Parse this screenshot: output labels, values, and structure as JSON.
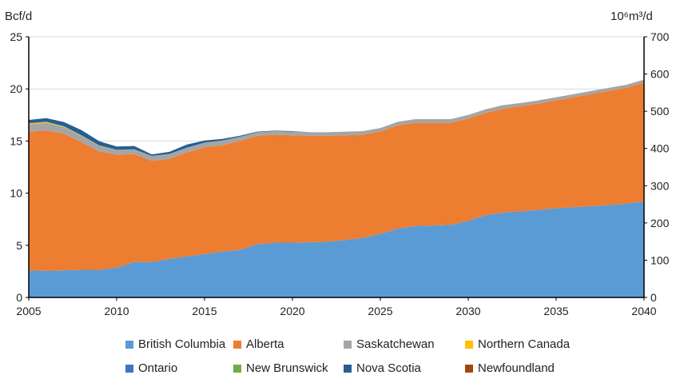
{
  "chart_data": {
    "type": "area",
    "stacked": true,
    "ylabel_left": "Bcf/d",
    "ylabel_right": "10⁶m³/d",
    "x": [
      2005,
      2006,
      2007,
      2008,
      2009,
      2010,
      2011,
      2012,
      2013,
      2014,
      2015,
      2016,
      2017,
      2018,
      2019,
      2020,
      2021,
      2022,
      2023,
      2024,
      2025,
      2026,
      2027,
      2028,
      2029,
      2030,
      2031,
      2032,
      2033,
      2034,
      2035,
      2036,
      2037,
      2038,
      2039,
      2040
    ],
    "xlim": [
      2005,
      2040
    ],
    "xticks": [
      2005,
      2010,
      2015,
      2020,
      2025,
      2030,
      2035,
      2040
    ],
    "ylim": [
      0,
      25
    ],
    "yticks": [
      0,
      5,
      10,
      15,
      20,
      25
    ],
    "ylim_right": [
      0,
      700
    ],
    "yticks_right": [
      0,
      100,
      200,
      300,
      400,
      500,
      600,
      700
    ],
    "grid": true,
    "legend_position": "bottom",
    "series": [
      {
        "name": "British Columbia",
        "color": "#5b9bd5",
        "values": [
          2.6,
          2.55,
          2.6,
          2.65,
          2.65,
          2.85,
          3.4,
          3.4,
          3.7,
          3.95,
          4.15,
          4.4,
          4.55,
          5.1,
          5.25,
          5.25,
          5.3,
          5.35,
          5.5,
          5.7,
          6.1,
          6.6,
          6.85,
          6.9,
          6.95,
          7.35,
          7.9,
          8.15,
          8.25,
          8.4,
          8.55,
          8.65,
          8.75,
          8.85,
          9.0,
          9.2
        ]
      },
      {
        "name": "Alberta",
        "color": "#ed7d31",
        "values": [
          13.3,
          13.45,
          13.1,
          12.25,
          11.35,
          10.85,
          10.35,
          9.7,
          9.6,
          9.95,
          10.25,
          10.2,
          10.45,
          10.4,
          10.35,
          10.3,
          10.2,
          10.15,
          10.05,
          9.9,
          9.8,
          9.9,
          9.9,
          9.85,
          9.8,
          9.8,
          9.8,
          9.95,
          10.1,
          10.2,
          10.35,
          10.55,
          10.75,
          10.95,
          11.1,
          11.4
        ]
      },
      {
        "name": "Saskatchewan",
        "color": "#a5a5a5",
        "values": [
          0.7,
          0.75,
          0.65,
          0.6,
          0.55,
          0.45,
          0.45,
          0.45,
          0.45,
          0.45,
          0.45,
          0.45,
          0.4,
          0.35,
          0.35,
          0.35,
          0.35,
          0.35,
          0.35,
          0.35,
          0.35,
          0.35,
          0.35,
          0.35,
          0.35,
          0.35,
          0.35,
          0.35,
          0.3,
          0.3,
          0.3,
          0.3,
          0.3,
          0.3,
          0.3,
          0.3
        ]
      },
      {
        "name": "Northern Canada",
        "color": "#ffc000",
        "values": [
          0.1,
          0.08,
          0.05,
          0.03,
          0.02,
          0,
          0,
          0,
          0,
          0,
          0,
          0,
          0,
          0,
          0,
          0,
          0,
          0,
          0,
          0,
          0,
          0,
          0,
          0,
          0,
          0,
          0,
          0,
          0,
          0,
          0,
          0,
          0,
          0,
          0,
          0
        ]
      },
      {
        "name": "Ontario",
        "color": "#4472c4",
        "values": [
          0.01,
          0.01,
          0.01,
          0.01,
          0.01,
          0.01,
          0.01,
          0.01,
          0.01,
          0.01,
          0,
          0,
          0,
          0,
          0,
          0,
          0,
          0,
          0,
          0,
          0,
          0,
          0,
          0,
          0,
          0,
          0,
          0,
          0,
          0,
          0,
          0,
          0,
          0,
          0,
          0
        ]
      },
      {
        "name": "New Brunswick",
        "color": "#70ad47",
        "values": [
          0.01,
          0.01,
          0.01,
          0.01,
          0.01,
          0.01,
          0.01,
          0.01,
          0.01,
          0.01,
          0,
          0,
          0,
          0,
          0,
          0,
          0,
          0,
          0,
          0,
          0,
          0,
          0,
          0,
          0,
          0,
          0,
          0,
          0,
          0,
          0,
          0,
          0,
          0,
          0,
          0
        ]
      },
      {
        "name": "Nova Scotia",
        "color": "#255e91",
        "values": [
          0.3,
          0.35,
          0.4,
          0.5,
          0.4,
          0.3,
          0.3,
          0.15,
          0.2,
          0.3,
          0.2,
          0.15,
          0.1,
          0.05,
          0.05,
          0.05,
          0,
          0,
          0,
          0,
          0,
          0,
          0,
          0,
          0,
          0,
          0,
          0,
          0,
          0,
          0,
          0,
          0,
          0,
          0,
          0
        ]
      },
      {
        "name": "Newfoundland",
        "color": "#9e480e",
        "values": [
          0,
          0,
          0,
          0,
          0,
          0,
          0,
          0,
          0,
          0,
          0,
          0,
          0,
          0,
          0,
          0,
          0,
          0,
          0,
          0,
          0,
          0,
          0,
          0,
          0,
          0,
          0,
          0,
          0,
          0,
          0,
          0,
          0,
          0,
          0,
          0
        ]
      }
    ]
  }
}
